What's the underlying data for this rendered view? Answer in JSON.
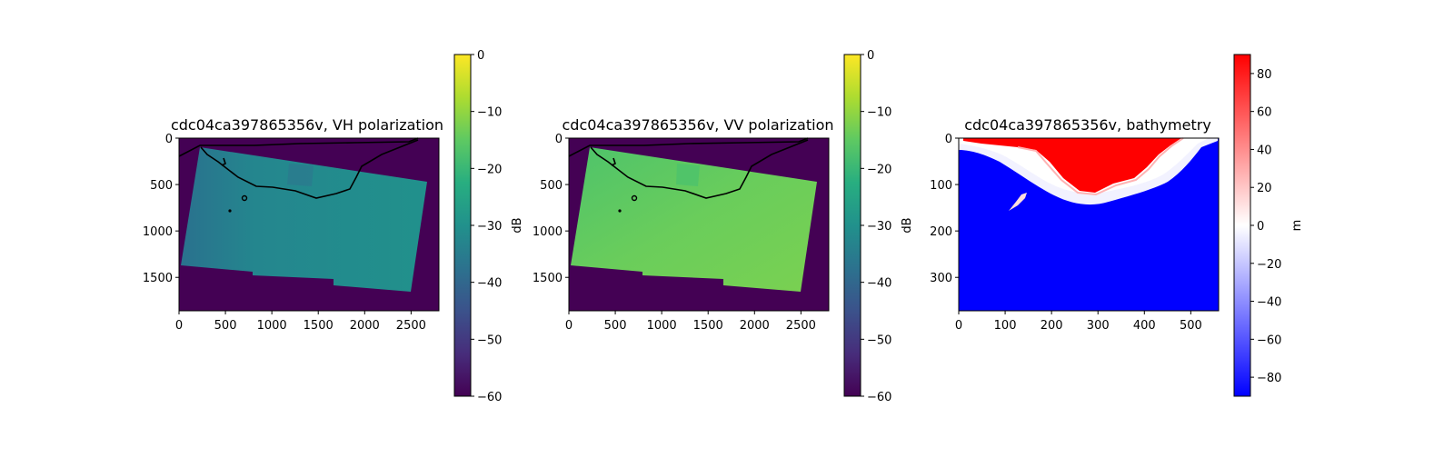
{
  "chart_data": [
    {
      "type": "heatmap",
      "title": "cdc04ca397865356v, VH polarization",
      "x_ticks": [
        0,
        500,
        1000,
        1500,
        2000,
        2500
      ],
      "y_ticks": [
        0,
        500,
        1000,
        1500
      ],
      "xlim": [
        0,
        2800
      ],
      "ylim": [
        1860,
        0
      ],
      "colorbar": {
        "label": "dB",
        "colormap": "viridis",
        "range": [
          -60,
          0
        ],
        "ticks": [
          0,
          -10,
          -20,
          -30,
          -40,
          -50,
          -60
        ],
        "tick_labels": [
          "0",
          "−10",
          "−20",
          "−30",
          "−40",
          "−50",
          "−60"
        ]
      },
      "background_value_db": -60,
      "footprint_value_db": -25,
      "coastline": [
        [
          0,
          60
        ],
        [
          250,
          40
        ],
        [
          800,
          38
        ],
        [
          1400,
          20
        ],
        [
          2400,
          15
        ],
        [
          2580,
          0
        ]
      ],
      "shoreline_contour": [
        [
          240,
          110
        ],
        [
          300,
          180
        ],
        [
          430,
          260
        ],
        [
          640,
          420
        ],
        [
          820,
          510
        ],
        [
          1100,
          540
        ],
        [
          1300,
          600
        ],
        [
          1500,
          650
        ],
        [
          1750,
          580
        ],
        [
          1880,
          530
        ],
        [
          2000,
          300
        ],
        [
          2260,
          140
        ],
        [
          2520,
          30
        ]
      ]
    },
    {
      "type": "heatmap",
      "title": "cdc04ca397865356v, VV polarization",
      "x_ticks": [
        0,
        500,
        1000,
        1500,
        2000,
        2500
      ],
      "y_ticks": [
        0,
        500,
        1000,
        1500
      ],
      "xlim": [
        0,
        2800
      ],
      "ylim": [
        1860,
        0
      ],
      "colorbar": {
        "label": "dB",
        "colormap": "viridis",
        "range": [
          -60,
          0
        ],
        "ticks": [
          0,
          -10,
          -20,
          -30,
          -40,
          -50,
          -60
        ],
        "tick_labels": [
          "0",
          "−10",
          "−20",
          "−30",
          "−40",
          "−50",
          "−60"
        ]
      },
      "background_value_db": -60,
      "footprint_value_db": -18,
      "coastline": [
        [
          0,
          60
        ],
        [
          250,
          40
        ],
        [
          800,
          38
        ],
        [
          1400,
          20
        ],
        [
          2400,
          15
        ],
        [
          2580,
          0
        ]
      ],
      "shoreline_contour": [
        [
          240,
          110
        ],
        [
          300,
          180
        ],
        [
          430,
          260
        ],
        [
          640,
          420
        ],
        [
          820,
          510
        ],
        [
          1100,
          540
        ],
        [
          1300,
          600
        ],
        [
          1500,
          650
        ],
        [
          1750,
          580
        ],
        [
          1880,
          530
        ],
        [
          2000,
          300
        ],
        [
          2260,
          140
        ],
        [
          2520,
          30
        ]
      ]
    },
    {
      "type": "heatmap",
      "title": "cdc04ca397865356v, bathymetry",
      "x_ticks": [
        0,
        100,
        200,
        300,
        400,
        500
      ],
      "y_ticks": [
        0,
        100,
        200,
        300
      ],
      "xlim": [
        0,
        560
      ],
      "ylim": [
        372,
        0
      ],
      "colorbar": {
        "label": "m",
        "colormap": "bwr",
        "range": [
          -90,
          90
        ],
        "ticks": [
          80,
          60,
          40,
          20,
          0,
          -20,
          -40,
          -60,
          -80
        ],
        "tick_labels": [
          "80",
          "60",
          "40",
          "20",
          "0",
          "−20",
          "−40",
          "−60",
          "−80"
        ]
      },
      "land_outline": [
        [
          0,
          10
        ],
        [
          30,
          20
        ],
        [
          80,
          15
        ],
        [
          110,
          5
        ],
        [
          140,
          0
        ],
        [
          460,
          0
        ],
        [
          440,
          40
        ],
        [
          400,
          80
        ],
        [
          360,
          100
        ],
        [
          300,
          115
        ],
        [
          230,
          130
        ],
        [
          170,
          110
        ],
        [
          130,
          80
        ],
        [
          90,
          45
        ],
        [
          40,
          30
        ],
        [
          0,
          25
        ]
      ]
    }
  ]
}
